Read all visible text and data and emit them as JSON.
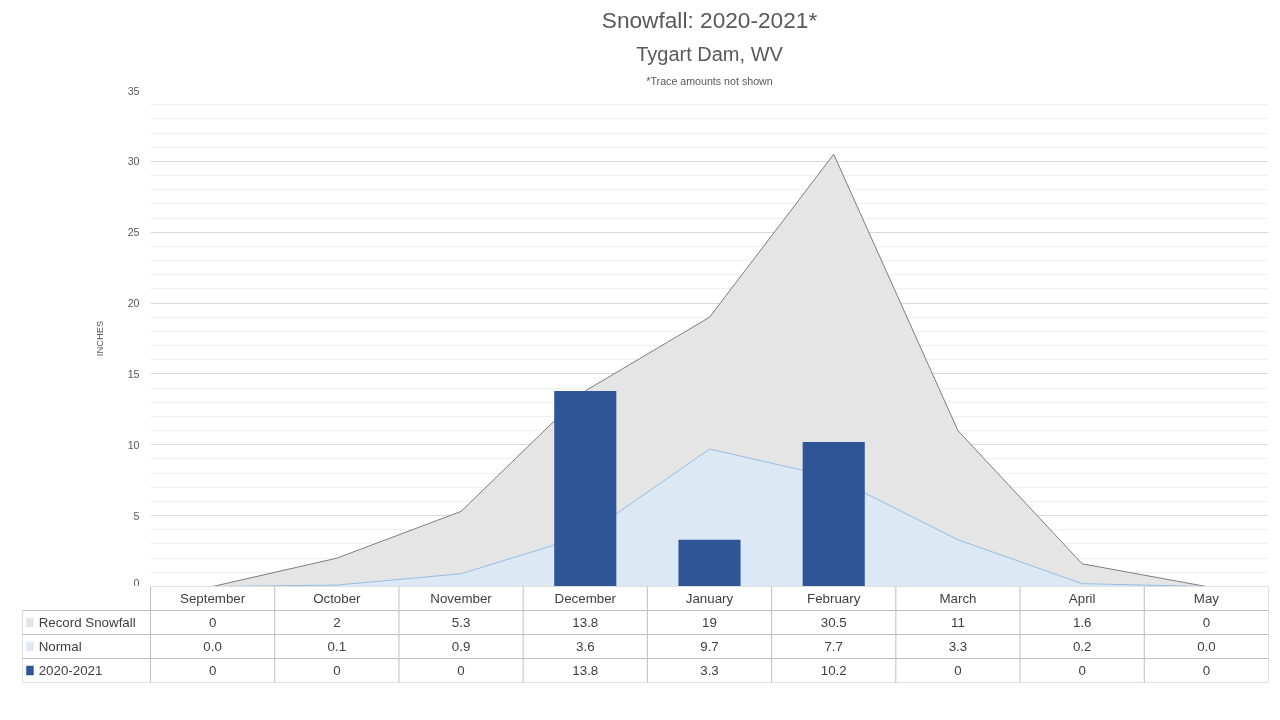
{
  "chart_data": {
    "type": "area",
    "title": "Snowfall: 2020-2021*",
    "subtitle": "Tygart Dam, WV",
    "annotations": [
      "*Trace amounts not shown"
    ],
    "ylabel": "INCHES",
    "categories": [
      "September",
      "October",
      "November",
      "December",
      "January",
      "February",
      "March",
      "April",
      "May"
    ],
    "series": [
      {
        "name": "Record Snowfall",
        "color": "#e5e5e5",
        "values": [
          0,
          2,
          5.3,
          13.8,
          19,
          30.5,
          11,
          1.6,
          0
        ],
        "value_labels": [
          "0",
          "2",
          "5.3",
          "13.8",
          "19",
          "30.5",
          "11",
          "1.6",
          "0"
        ]
      },
      {
        "name": "Normal",
        "color": "#dce9f5",
        "values": [
          0.0,
          0.1,
          0.9,
          3.6,
          9.7,
          7.7,
          3.3,
          0.2,
          0.0
        ],
        "value_labels": [
          "0.0",
          "0.1",
          "0.9",
          "3.6",
          "9.7",
          "7.7",
          "3.3",
          "0.2",
          "0.0"
        ]
      },
      {
        "name": "2020-2021",
        "type": "bar",
        "color": "#2f5597",
        "values": [
          0,
          0,
          0,
          13.8,
          3.3,
          10.2,
          0,
          0,
          0
        ],
        "value_labels": [
          "0",
          "0",
          "0",
          "13.8",
          "3.3",
          "10.2",
          "0",
          "0",
          "0"
        ]
      }
    ],
    "ylim": [
      0,
      35
    ],
    "yticks": [
      0,
      5,
      10,
      15,
      20,
      25,
      30,
      35
    ],
    "grid": "y",
    "legend": "bottom"
  }
}
